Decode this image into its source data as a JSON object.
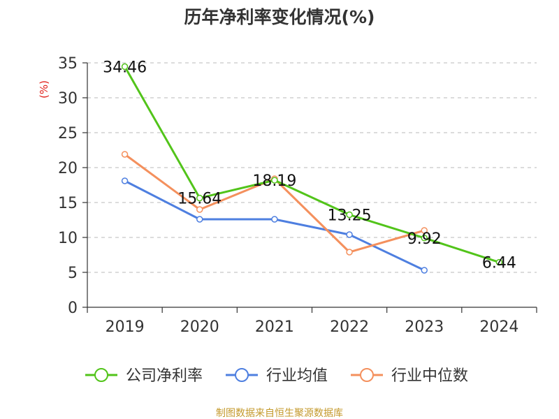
{
  "chart_data": {
    "type": "line",
    "title": "历年净利率变化情况(%)",
    "ylabel": "(%)",
    "xlabel": "",
    "categories": [
      "2019",
      "2020",
      "2021",
      "2022",
      "2023",
      "2024"
    ],
    "ylim": [
      0,
      35
    ],
    "yticks": [
      0,
      5,
      10,
      15,
      20,
      25,
      30,
      35
    ],
    "grid": true,
    "legend_position": "bottom",
    "series": [
      {
        "name": "公司净利率",
        "color": "#52c41a",
        "values": [
          34.46,
          15.64,
          18.19,
          13.25,
          9.92,
          6.44
        ],
        "labels": [
          "34.46",
          "15.64",
          "18.19",
          "13.25",
          "9.92",
          "6.44"
        ]
      },
      {
        "name": "行业均值",
        "color": "#4e7fe0",
        "values": [
          18.1,
          12.6,
          12.6,
          10.4,
          5.3,
          null
        ]
      },
      {
        "name": "行业中位数",
        "color": "#f4905d",
        "values": [
          21.9,
          14.0,
          18.4,
          7.9,
          11.0,
          null
        ]
      }
    ]
  },
  "footer": {
    "source": "制图数据来自恒生聚源数据库",
    "source_color": "#c49a2c"
  }
}
